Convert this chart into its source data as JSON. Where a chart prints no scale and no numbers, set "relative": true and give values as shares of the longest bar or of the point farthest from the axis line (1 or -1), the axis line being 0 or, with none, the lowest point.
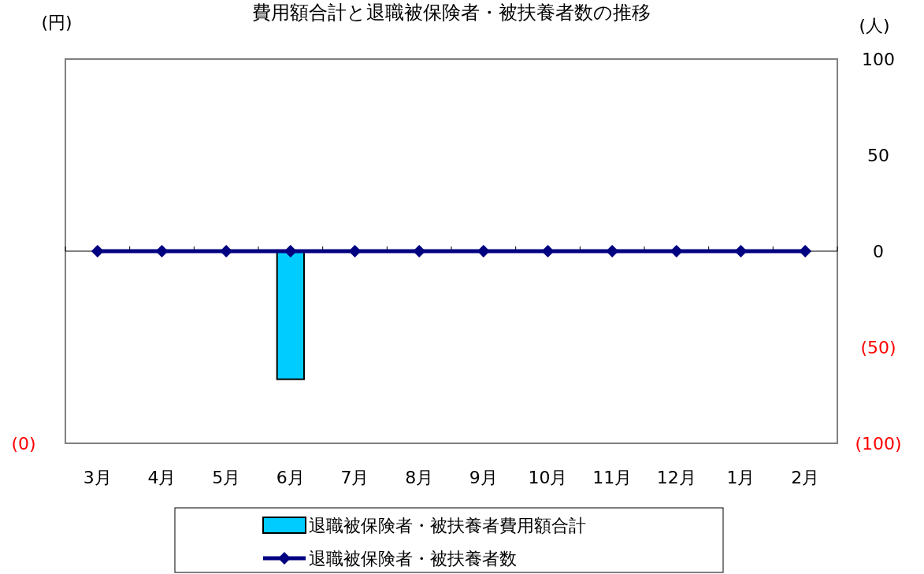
{
  "chart_data": {
    "type": "bar",
    "title": "費用額合計と退職被保険者・被扶養者数の推移",
    "ylabel": "(円)",
    "y2label": "(人)",
    "categories": [
      "3月",
      "4月",
      "5月",
      "6月",
      "7月",
      "8月",
      "9月",
      "10月",
      "11月",
      "12月",
      "1月",
      "2月"
    ],
    "relative": true,
    "series": [
      {
        "name": "退職被保険者・被扶養者費用額合計",
        "color": "#00ccff",
        "values": [
          null,
          null,
          null,
          -1,
          null,
          null,
          null,
          null,
          null,
          null,
          null,
          null
        ]
      },
      {
        "name": "退職被保険者・被扶養者数",
        "type": "line",
        "axis": "y2",
        "color": "#000080",
        "marker": "diamond",
        "values": [
          0,
          0,
          0,
          0,
          0,
          0,
          0,
          0,
          0,
          0,
          0,
          0
        ]
      }
    ],
    "y2lim": [
      -100,
      100
    ],
    "y2ticks": [
      100,
      50,
      0,
      {
        "value": -50,
        "label": "(50)"
      },
      {
        "value": -100,
        "label": "(100)"
      }
    ],
    "annotations": [
      "(0)"
    ],
    "legend": "bottom"
  }
}
